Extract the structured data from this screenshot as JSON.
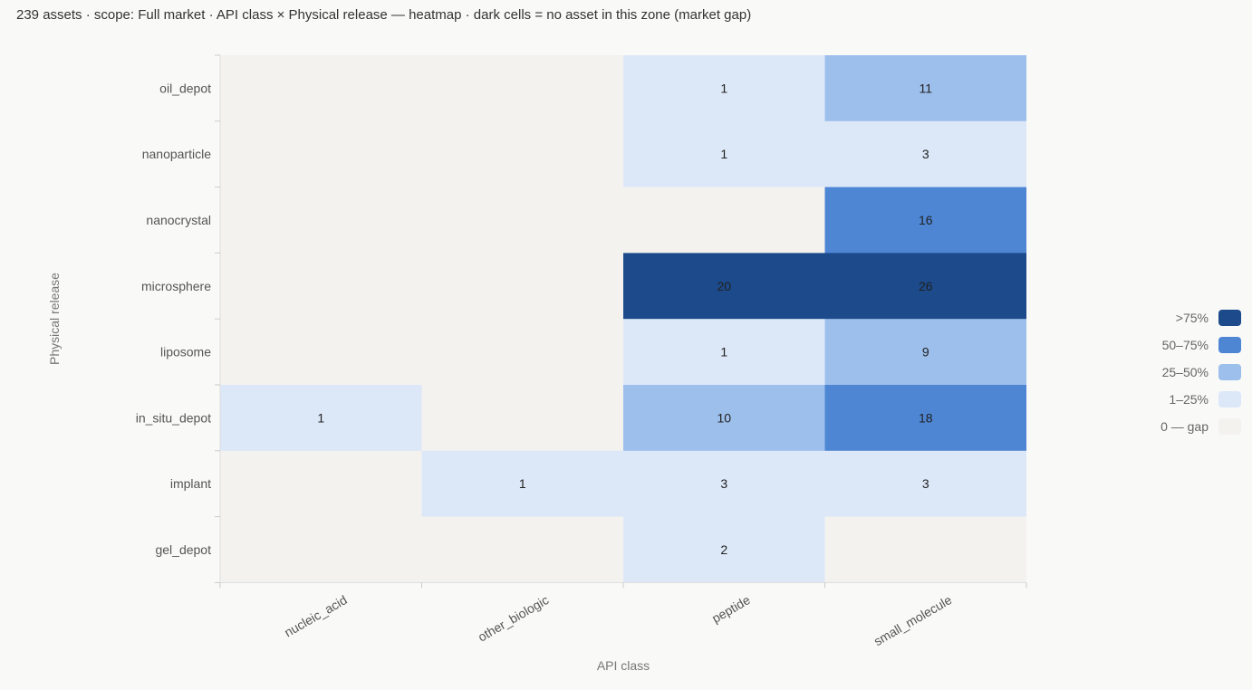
{
  "header": {
    "summary": "239 assets · scope: Full market · API class × Physical release — heatmap · dark cells = no asset in this zone (market gap)"
  },
  "chart_data": {
    "type": "heatmap",
    "xlabel": "API class",
    "ylabel": "Physical release",
    "x_categories": [
      "nucleic_acid",
      "other_biologic",
      "peptide",
      "small_molecule"
    ],
    "y_categories": [
      "oil_depot",
      "nanoparticle",
      "nanocrystal",
      "microsphere",
      "liposome",
      "in_situ_depot",
      "implant",
      "gel_depot"
    ],
    "values": [
      [
        0,
        0,
        1,
        11
      ],
      [
        0,
        0,
        1,
        3
      ],
      [
        0,
        0,
        0,
        16
      ],
      [
        0,
        0,
        20,
        26
      ],
      [
        0,
        0,
        1,
        9
      ],
      [
        1,
        0,
        10,
        18
      ],
      [
        0,
        1,
        3,
        3
      ],
      [
        0,
        0,
        2,
        0
      ]
    ],
    "legend": [
      {
        "label": ">75%",
        "color": "#1c4a8a"
      },
      {
        "label": "50–75%",
        "color": "#4e86d4"
      },
      {
        "label": "25–50%",
        "color": "#9dbfec"
      },
      {
        "label": "1–25%",
        "color": "#dce8f8"
      },
      {
        "label": "0 — gap",
        "color": "#f3f2ef"
      }
    ],
    "legend_position": "right"
  }
}
